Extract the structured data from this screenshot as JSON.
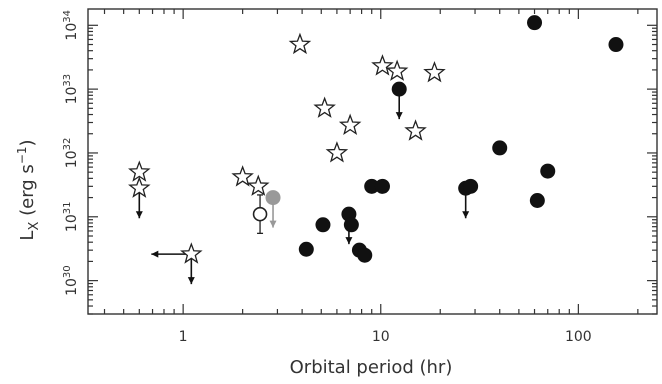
{
  "chart_data": {
    "type": "scatter",
    "x_scale": "log",
    "y_scale": "log",
    "xlim": [
      0.33,
      250
    ],
    "ylim": [
      3e+29,
      1.8e+34
    ],
    "xlabel": "Orbital period (hr)",
    "ylabel_main": "L",
    "ylabel_sub": "X",
    "ylabel_units": "(erg s",
    "ylabel_sup": "−1",
    "ylabel_close": ")",
    "x_ticks": [
      {
        "value": 1,
        "label": "1"
      },
      {
        "value": 10,
        "label": "10"
      },
      {
        "value": 100,
        "label": "100"
      }
    ],
    "y_ticks": [
      {
        "value": 1e+30,
        "base": "10",
        "exp": "30"
      },
      {
        "value": 1e+31,
        "base": "10",
        "exp": "31"
      },
      {
        "value": 1e+32,
        "base": "10",
        "exp": "32"
      },
      {
        "value": 1e+33,
        "base": "10",
        "exp": "33"
      },
      {
        "value": 1e+34,
        "base": "10",
        "exp": "34"
      }
    ],
    "grid": false,
    "colors": {
      "filled": "#111111",
      "gray": "#999999",
      "axis": "#333333"
    },
    "series": [
      {
        "marker": "star-open",
        "points": [
          {
            "x": 0.6,
            "y": 5e+31
          },
          {
            "x": 0.6,
            "y": 2.8e+31,
            "upper_limit": true
          },
          {
            "x": 1.1,
            "y": 2.6e+30,
            "upper_limit": true,
            "left_limit": true
          },
          {
            "x": 2.0,
            "y": 4.2e+31
          },
          {
            "x": 2.4,
            "y": 3e+31
          },
          {
            "x": 3.9,
            "y": 5e+33
          },
          {
            "x": 5.2,
            "y": 5e+32
          },
          {
            "x": 6.0,
            "y": 1e+32
          },
          {
            "x": 7.0,
            "y": 2.7e+32
          },
          {
            "x": 10.2,
            "y": 2.3e+33
          },
          {
            "x": 12.1,
            "y": 1.9e+33
          },
          {
            "x": 15.0,
            "y": 2.2e+32
          },
          {
            "x": 18.7,
            "y": 1.8e+33
          }
        ]
      },
      {
        "marker": "circle-filled",
        "points": [
          {
            "x": 4.2,
            "y": 3.1e+30
          },
          {
            "x": 5.1,
            "y": 7.5e+30
          },
          {
            "x": 6.9,
            "y": 1.1e+31,
            "upper_limit": true
          },
          {
            "x": 7.1,
            "y": 7.5e+30
          },
          {
            "x": 7.8,
            "y": 3e+30
          },
          {
            "x": 8.3,
            "y": 2.5e+30
          },
          {
            "x": 9.0,
            "y": 3e+31
          },
          {
            "x": 10.2,
            "y": 3e+31
          },
          {
            "x": 12.4,
            "y": 1e+33,
            "upper_limit": true
          },
          {
            "x": 26.9,
            "y": 2.8e+31,
            "upper_limit": true
          },
          {
            "x": 28.5,
            "y": 3e+31
          },
          {
            "x": 40.0,
            "y": 1.2e+32
          },
          {
            "x": 60.0,
            "y": 1.1e+34
          },
          {
            "x": 62.0,
            "y": 1.8e+31
          },
          {
            "x": 70.0,
            "y": 5.2e+31
          },
          {
            "x": 155.0,
            "y": 5e+33
          }
        ]
      },
      {
        "marker": "circle-open",
        "points": [
          {
            "x": 2.45,
            "y": 1.1e+31,
            "err_low": 5.5e+30,
            "err_high": 2.2e+31
          }
        ]
      },
      {
        "marker": "circle-gray",
        "points": [
          {
            "x": 2.85,
            "y": 2e+31,
            "upper_limit": true
          }
        ]
      }
    ]
  }
}
